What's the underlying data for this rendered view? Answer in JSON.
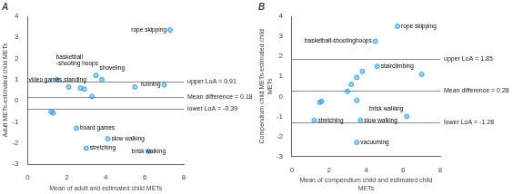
{
  "chart_data": [
    {
      "type": "scatter",
      "title": "A",
      "xlabel": "Mean of adult and estimated child METs",
      "ylabel": "Adult METs-estimated child METs",
      "xlim": [
        0,
        8
      ],
      "ylim": [
        -3,
        4
      ],
      "xticks": [
        0,
        2,
        4,
        6,
        8
      ],
      "yticks": [
        -3,
        -2,
        -1,
        0,
        1,
        2,
        3,
        4
      ],
      "grid": false,
      "x": [
        1.2,
        1.3,
        1.5,
        2.1,
        2.5,
        2.7,
        2.9,
        3.0,
        3.3,
        3.5,
        3.8,
        4.1,
        5.5,
        6.2,
        7.0,
        7.3
      ],
      "values": [
        -0.52,
        -0.58,
        1.0,
        0.65,
        -1.3,
        0.6,
        0.55,
        -2.25,
        0.2,
        1.2,
        1.0,
        -1.8,
        0.65,
        -2.4,
        0.75,
        3.35
      ],
      "point_labels": [
        null,
        null,
        "video games,standing",
        null,
        "board games",
        null,
        null,
        "stretching",
        null,
        "shoveling",
        "basketball\n-shooting hoops",
        "slow walking",
        null,
        "brisk walking",
        "running",
        "rope skipping"
      ],
      "reference_lines": [
        {
          "value": 0.91,
          "label": "upper LoA = 0.91"
        },
        {
          "value": 0.18,
          "label": "Mean difference = 0.18"
        },
        {
          "value": -0.39,
          "label": "lower LoA = -0.39"
        }
      ]
    },
    {
      "type": "scatter",
      "title": "B",
      "xlabel": "Mean of compendium child and estimated child METs",
      "ylabel": "Compendium child METs-estimated child METs",
      "xlim": [
        0,
        8
      ],
      "ylim": [
        -3,
        4
      ],
      "xticks": [
        0,
        2,
        4,
        6,
        8
      ],
      "yticks": [
        -3,
        -2,
        -1,
        0,
        1,
        2,
        3,
        4
      ],
      "grid": false,
      "x": [
        1.5,
        1.6,
        1.2,
        3.5,
        3.8,
        3.0,
        3.2,
        3.5,
        3.7,
        3.5,
        4.6,
        4.5,
        6.2,
        7.0,
        5.7
      ],
      "values": [
        -0.3,
        -0.25,
        -1.2,
        0.95,
        1.25,
        0.25,
        0.6,
        -0.2,
        -1.2,
        -2.3,
        1.5,
        2.75,
        -1.0,
        1.1,
        3.5
      ],
      "point_labels": [
        null,
        null,
        "stretching",
        null,
        null,
        null,
        null,
        null,
        "slow walking",
        "vacuuming",
        "stairclimbing",
        "basketball-shootinghoops",
        "brisk walking",
        null,
        "rope skipping"
      ],
      "reference_lines": [
        {
          "value": 1.85,
          "label": "upper LoA = 1.85"
        },
        {
          "value": 0.28,
          "label": "Mean difference = 0.28"
        },
        {
          "value": -1.28,
          "label": "lower LoA = -1.28"
        }
      ]
    }
  ]
}
